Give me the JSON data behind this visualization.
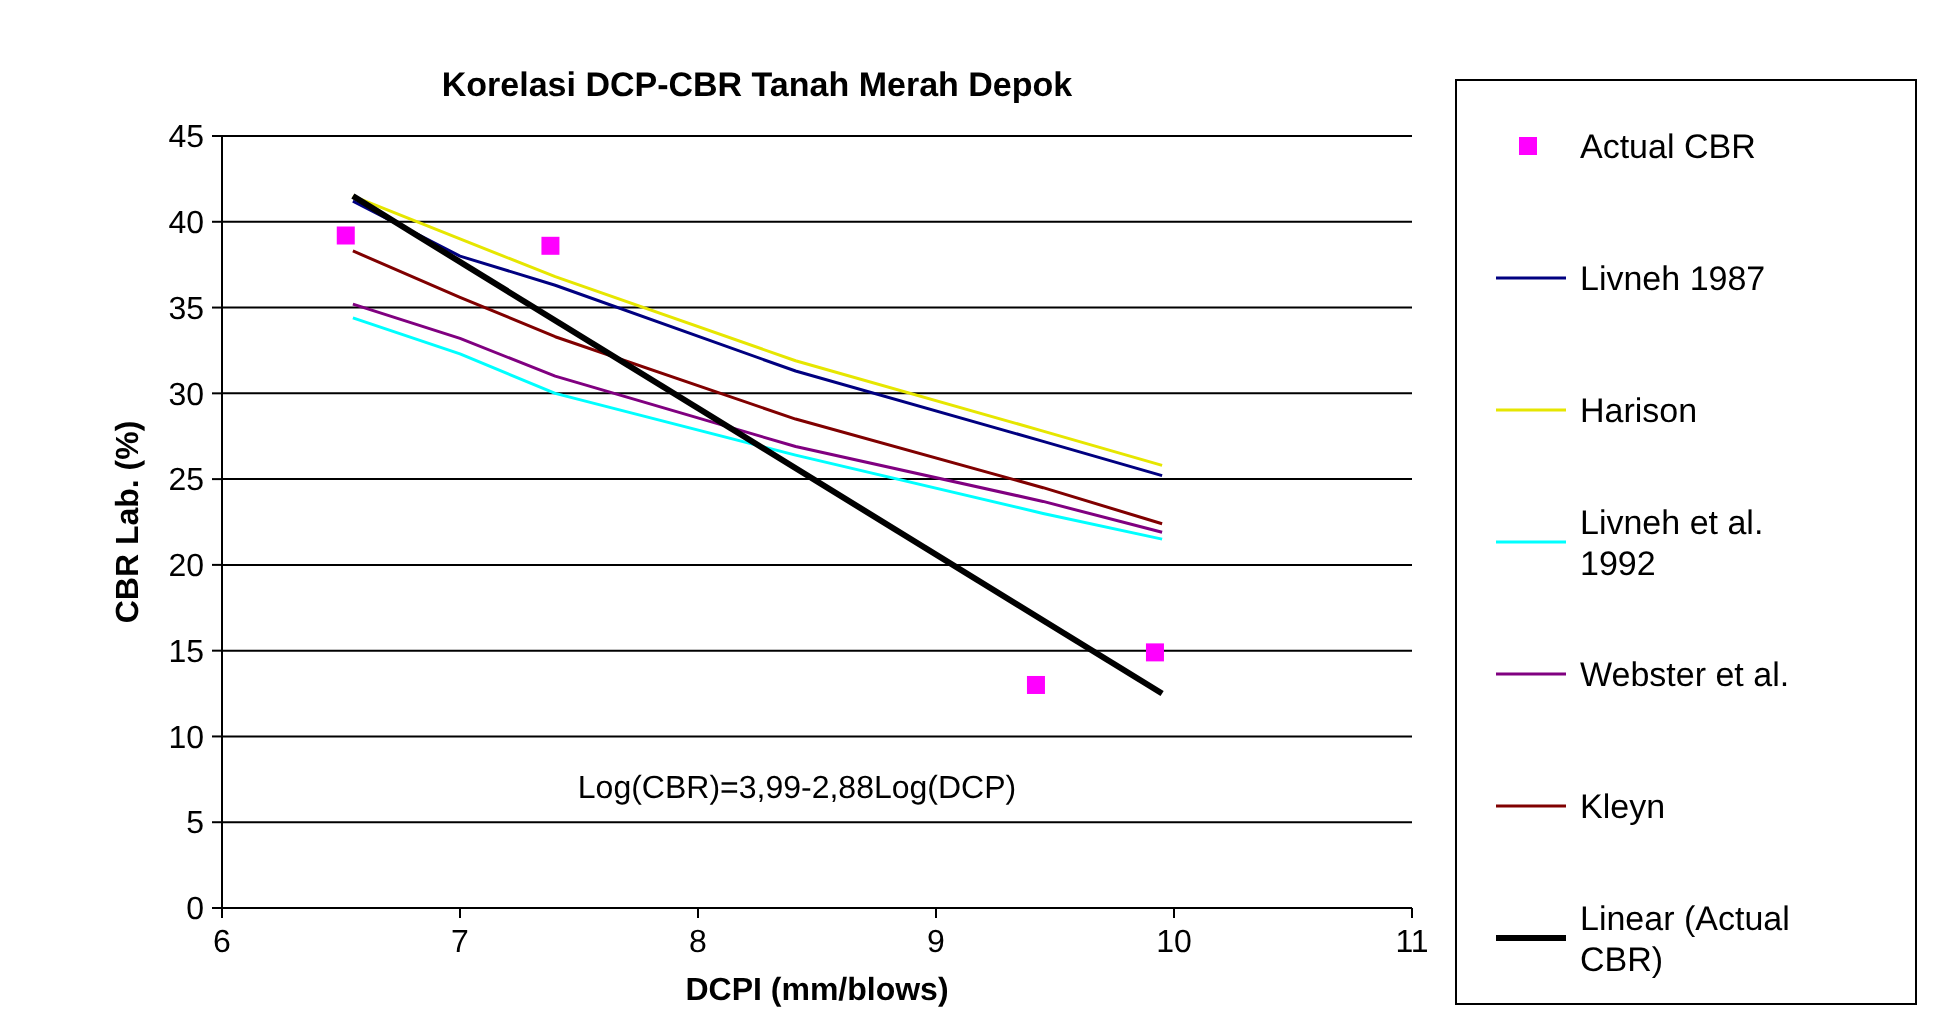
{
  "chart_data": {
    "type": "line",
    "title": "Korelasi DCP-CBR Tanah Merah Depok",
    "xlabel": "DCPI (mm/blows)",
    "ylabel": "CBR Lab. (%)",
    "xlim": [
      6,
      11
    ],
    "xticks": [
      6,
      7,
      8,
      9,
      10,
      11
    ],
    "ylim": [
      0,
      45
    ],
    "yticks": [
      0,
      5,
      10,
      15,
      20,
      25,
      30,
      35,
      40,
      45
    ],
    "grid": "y",
    "legend": "right",
    "annotations": [
      "Log(CBR)=3,99-2,88Log(DCP)"
    ],
    "series": [
      {
        "name": "Actual CBR",
        "type": "scatter",
        "marker": "square",
        "color": "#ff00ff",
        "x": [
          6.52,
          7.38,
          9.42,
          9.92
        ],
        "values": [
          39.2,
          38.6,
          13.0,
          14.9
        ]
      },
      {
        "name": "Livneh 1987",
        "color": "#000080",
        "x": [
          6.55,
          7.0,
          7.4,
          8.41,
          9.45,
          9.95
        ],
        "values": [
          41.2,
          38.0,
          36.3,
          31.3,
          27.2,
          25.2
        ]
      },
      {
        "name": "Harison",
        "color": "#e6e600",
        "x": [
          6.55,
          7.0,
          7.4,
          8.41,
          9.45,
          9.95
        ],
        "values": [
          41.5,
          39.0,
          36.8,
          31.9,
          27.8,
          25.8
        ]
      },
      {
        "name": "Livneh et al. 1992",
        "color": "#00ffff",
        "x": [
          6.55,
          7.0,
          7.4,
          8.41,
          9.45,
          9.95
        ],
        "values": [
          34.4,
          32.3,
          30.0,
          26.4,
          23.0,
          21.5
        ]
      },
      {
        "name": "Webster et al.",
        "color": "#800080",
        "x": [
          6.55,
          7.0,
          7.4,
          8.41,
          9.45,
          9.95
        ],
        "values": [
          35.2,
          33.2,
          31.0,
          26.9,
          23.7,
          21.9
        ]
      },
      {
        "name": "Kleyn",
        "color": "#800000",
        "x": [
          6.55,
          7.0,
          7.4,
          8.41,
          9.45,
          9.95
        ],
        "values": [
          38.3,
          35.6,
          33.3,
          28.5,
          24.5,
          22.4
        ]
      },
      {
        "name": "Linear (Actual CBR)",
        "color": "#000000",
        "x": [
          6.55,
          9.95
        ],
        "values": [
          41.5,
          12.5
        ]
      }
    ]
  }
}
